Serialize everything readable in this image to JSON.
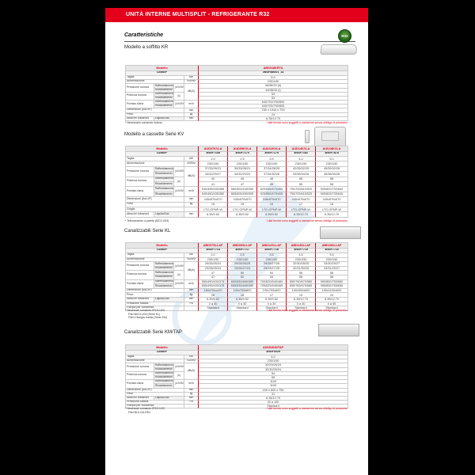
{
  "banner": {
    "title": "UNITÀ INTERNE MULTISPLIT - REFRIGERANTE R32"
  },
  "heading": "Caratteristiche",
  "badge": {
    "label": "R32"
  },
  "colors": {
    "red": "#e2001a",
    "badge_green": "#2f7a28",
    "watermark_blue": "#d8e9f6"
  },
  "header_labels": {
    "model": "Modello",
    "code": "Codice*"
  },
  "note_right": "I dati tecnici sono soggetti a variazione senza obbligo di preavviso",
  "tables": [
    {
      "id": "kr",
      "section_title": "Modello a soffitto KR",
      "image": "ceiling-unit",
      "models": [
        "ABD018KRTA"
      ],
      "codes": [
        "3NGF8800/1_14"
      ],
      "rows": [
        {
          "label": "Taglia",
          "unit": "kW",
          "values": [
            "5.0"
          ]
        },
        {
          "label": "Alimentazione",
          "unit": "V/Ø/Hz",
          "values": [
            "230/1/50"
          ]
        },
        {
          "group": "Pressione sonora",
          "subs": [
            "Raffreddamento",
            "Riscaldamento"
          ],
          "bracket": "(A/M/B/Q)",
          "unit": "dB(A)",
          "unitspan": 4,
          "values": [
            [
              "46/38/33 (h)"
            ],
            [
              "46/38/33 (l)"
            ]
          ]
        },
        {
          "group": "Potenza sonora",
          "subs": [
            "Raffreddamento",
            "Riscaldamento"
          ],
          "bracket": "(A)",
          "values": [
            [
              "53"
            ],
            [
              "53"
            ]
          ]
        },
        {
          "group": "Portata d'aria",
          "subs": [
            "Raffreddamento",
            "Riscaldamento"
          ],
          "bracket": "(A/M/B/Q)",
          "unit": "m³/h",
          "values": [
            [
              "640/700/750/800"
            ],
            [
              "640/705/750/805"
            ]
          ]
        },
        {
          "label": "Dimensioni (AxLxP)",
          "unit": "mm",
          "values": [
            "235 x 1044 x 700"
          ]
        },
        {
          "label": "Peso",
          "unit": "kg",
          "values": [
            "24"
          ]
        },
        {
          "label": "Attacchi tubazioni",
          "sub": "Liquido/Gas",
          "unit": "mm",
          "values": [
            "6.35/12.70"
          ]
        }
      ],
      "footnotes": [
        "* Necessario comando incluso"
      ]
    },
    {
      "id": "kv",
      "section_title": "Modello a cassette Serie KV",
      "image": "cassette-unit",
      "models": [
        "AUD07KVLA",
        "AUD09KVLA",
        "AUD12KVLA",
        "AUD14KVLA",
        "AUD18KVLA"
      ],
      "codes": [
        "3NGF7155",
        "3NGF7170",
        "3NGF7175",
        "3NGF7182",
        "3NGF7878"
      ],
      "rows": [
        {
          "label": "Taglia",
          "unit": "kW",
          "values": [
            "2.0",
            "2.5",
            "3.5",
            "4.2",
            "5.0"
          ]
        },
        {
          "label": "Alimentazione",
          "unit": "V/Ø/Hz",
          "values": [
            "230/1/50",
            "230/1/50",
            "230/1/50",
            "230/1/50",
            "230/1/50"
          ]
        },
        {
          "group": "Pressione sonora",
          "subs": [
            "Raffreddamento",
            "Riscaldamento"
          ],
          "bracket": "(A/M/B/Q)",
          "unit": "dB(A)",
          "unitspan": 4,
          "values": [
            [
              "37/33/26/21",
              "39/33/28/21",
              "37/34/28/25",
              "42/35/32/25",
              "45/39/32/28"
            ],
            [
              "34/32/29/27",
              "34/32/29/24",
              "37/34/30/26",
              "43/36/34/26",
              "45/38/34/28"
            ]
          ]
        },
        {
          "group": "Potenza sonora",
          "subs": [
            "Raffreddamento",
            "Riscaldamento"
          ],
          "bracket": "(A)",
          "values": [
            [
              "40",
              "45",
              "48",
              "56",
              "58"
            ],
            [
              "41",
              "47",
              "49",
              "55",
              "58"
            ]
          ]
        },
        {
          "group": "Portata d'aria",
          "subs": [
            "Raffreddamento",
            "Riscaldamento"
          ],
          "bracket": "(A/M/B/Q)",
          "unit": "m³/h",
          "values": [
            [
              "540/495/430/385",
              "560/500/445/390",
              "620/545/470/400",
              "790/700/610/520",
              "900/820/730/640"
            ],
            [
              "540/490/435/380",
              "565/505/450/395",
              "625/550/475/405",
              "795/705/615/525",
              "905/825/735/645"
            ]
          ]
        },
        {
          "label": "Dimensioni (AxLxP)",
          "unit": "mm",
          "values": [
            "245x570x570",
            "245x570x570",
            "245x570x570",
            "245x570x570",
            "245x570x570"
          ]
        },
        {
          "label": "Peso",
          "unit": "kg",
          "values": [
            "15",
            "15",
            "15",
            "17",
            "18"
          ]
        },
        {
          "label": "Griglia",
          "unit": "",
          "values": [
            "LTG-GPNP-W",
            "LTG-GPNP-W",
            "LTG-GPNP-W",
            "LTG-GPNP-W",
            "LTG-GPNP-W"
          ]
        },
        {
          "label": "Attacchi tubazioni",
          "sub": "Liquido/Gas",
          "unit": "mm",
          "values": [
            "6.35/9.52",
            "6.35/9.52",
            "6.35/9.52",
            "6.35/12.70",
            "6.35/12.70"
          ]
        }
      ],
      "footnotes": [
        "* Telecomando a parete (MC3-U03)"
      ]
    },
    {
      "id": "kl",
      "section_title": "Canalizzabili Serie KL",
      "image": "ducted-unit",
      "models": [
        "ABD07SLLAF",
        "ABD09SLLAF",
        "ABD12SLLAF",
        "ABD14SLLAF",
        "ABD18SLLAF"
      ],
      "codes": [
        "3NGF7714",
        "3NGF7717",
        "3NGF7718",
        "3NGF7719",
        "3NGF7722"
      ],
      "rows": [
        {
          "label": "Taglia",
          "unit": "kW",
          "values": [
            "2.0",
            "2.5",
            "3.5",
            "4.6",
            "5.6"
          ]
        },
        {
          "label": "Alimentazione",
          "unit": "V/Ø/Hz",
          "values": [
            "230/1/50",
            "230/1/50",
            "230/1/50",
            "230/1/50",
            "230/1/50"
          ]
        },
        {
          "group": "Pressione sonora",
          "subs": [
            "Raffreddamento",
            "Riscaldamento"
          ],
          "bracket": "(A/M/B/Q)",
          "unit": "dB(A)",
          "unitspan": 4,
          "values": [
            [
              "29/26/25/24",
              "29/28/26/25",
              "29/28/27/26",
              "32/30/28/25",
              "33/30/29/27"
            ],
            [
              "29/28/25/24",
              "29/28/27/24",
              "29/28/27/25",
              "32/31/30/25",
              "33/31/29/27"
            ]
          ]
        },
        {
          "group": "Potenza sonora",
          "subs": [
            "Raffreddamento",
            "Riscaldamento"
          ],
          "bracket": "(A)",
          "values": [
            [
              "47",
              "50",
              "54",
              "56",
              "58"
            ],
            [
              "47",
              "52",
              "54",
              "56",
              "58"
            ]
          ]
        },
        {
          "group": "Portata d'aria",
          "subs": [
            "Raffreddamento",
            "Riscaldamento"
          ],
          "bracket": "(A/M/B/Q)",
          "unit": "m³/h",
          "values": [
            [
              "550/490/430/370",
              "600/530/460/390",
              "700/620/540/460",
              "850/760/670/580",
              "950/850/750/650"
            ],
            [
              "555/495/435/375",
              "605/535/465/395",
              "705/625/545/465",
              "855/765/675/585",
              "955/855/755/655"
            ]
          ]
        },
        {
          "label": "Dimensioni (AxLxP)",
          "unit": "mm",
          "values": [
            "190x700x620",
            "190x700x620",
            "190x700x620",
            "190x900x620",
            "190x1100x620"
          ]
        },
        {
          "label": "Peso",
          "unit": "kg",
          "values": [
            "16",
            "16",
            "17",
            "19",
            "24"
          ]
        },
        {
          "label": "Attacchi tubazioni",
          "sub": "Liquido/Gas",
          "unit": "mm",
          "values": [
            "6.35/9.52",
            "6.35/9.52",
            "6.35/9.52",
            "6.35/12.70",
            "6.35/12.70"
          ]
        },
        {
          "label": "Pressione statica",
          "unit": "Pa",
          "values": [
            "0 a 30",
            "0 a 30",
            "0 a 30",
            "0 a 30",
            "0 a 65"
          ]
        },
        {
          "label": "Pompa per condensa",
          "unit": "",
          "values": [
            "Standard",
            "Standard",
            "Standard",
            "Standard",
            "Standard"
          ]
        }
      ],
      "footnotes": [
        "* Necessari comando IRC3-U03",
        "Filtri IMC3-U03 (Serie KL)",
        "Filtri e flangia media (Serie KM)"
      ]
    },
    {
      "id": "km-tap",
      "section_title": "Canalizzabili Serie KM/TAP",
      "image": "ducted-unit",
      "models": [
        "AD052KM/TAP"
      ],
      "codes": [
        "3NGF0029"
      ],
      "rows": [
        {
          "label": "Taglia",
          "unit": "kW",
          "values": [
            "6.0"
          ]
        },
        {
          "label": "Alimentazione",
          "unit": "V/Ø/Hz",
          "values": [
            "230/1/50"
          ]
        },
        {
          "group": "Pressione sonora",
          "subs": [
            "Raffreddamento",
            "Riscaldamento"
          ],
          "bracket": "(A/M/B/Q)",
          "unit": "dB(A)",
          "unitspan": 4,
          "values": [
            [
              "32/29/26/24"
            ],
            [
              "32/30/26/24"
            ]
          ]
        },
        {
          "group": "Potenza sonora",
          "subs": [
            "Raffreddamento",
            "Riscaldamento"
          ],
          "bracket": "(A)",
          "values": [
            [
              "54"
            ],
            [
              "55"
            ]
          ]
        },
        {
          "group": "Portata d'aria",
          "subs": [
            "Raffreddamento",
            "Riscaldamento"
          ],
          "bracket": "(A/M/B/Q)",
          "unit": "m³/h",
          "values": [
            [
              "1100"
            ],
            [
              "1100"
            ]
          ]
        },
        {
          "label": "Dimensioni (AxLxP)",
          "unit": "mm",
          "values": [
            "249 x 800 x 750"
          ]
        },
        {
          "label": "Peso",
          "unit": "kg",
          "values": [
            "31"
          ]
        },
        {
          "label": "Attacchi tubazioni",
          "sub": "Liquido/Gas",
          "unit": "mm",
          "values": [
            "6.35/12.70"
          ]
        },
        {
          "label": "Pressione statica",
          "unit": "Pa",
          "values": [
            "30 a 150"
          ]
        },
        {
          "label": "Pompa per condensa",
          "unit": "",
          "values": [
            "Standard"
          ]
        }
      ],
      "footnotes": [
        "* Necessari comando IRC3-U03",
        "Filtri B10-GU-RK2"
      ]
    }
  ]
}
